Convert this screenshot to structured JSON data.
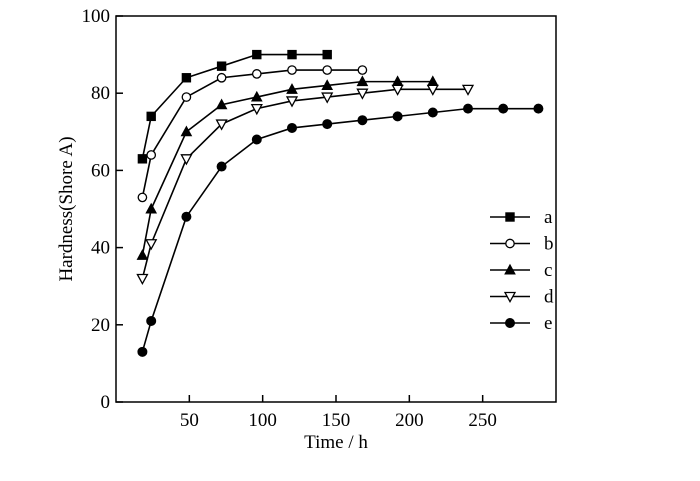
{
  "chart_data": {
    "type": "line",
    "xlabel": "Time / h",
    "ylabel": "Hardness(Shore A)",
    "xlim": [
      0,
      300
    ],
    "ylim": [
      0,
      100
    ],
    "x_ticks": [
      50,
      100,
      150,
      200,
      250
    ],
    "y_ticks": [
      0,
      20,
      40,
      60,
      80,
      100
    ],
    "grid": false,
    "legend_position": "right",
    "series": [
      {
        "name": "a",
        "marker": "filled-square",
        "x": [
          18,
          24,
          48,
          72,
          96,
          120,
          144
        ],
        "y": [
          63,
          74,
          84,
          87,
          90,
          90,
          90
        ]
      },
      {
        "name": "b",
        "marker": "open-circle",
        "x": [
          18,
          24,
          48,
          72,
          96,
          120,
          144,
          168
        ],
        "y": [
          53,
          64,
          79,
          84,
          85,
          86,
          86,
          86
        ]
      },
      {
        "name": "c",
        "marker": "filled-triangle-up",
        "x": [
          18,
          24,
          48,
          72,
          96,
          120,
          144,
          168,
          192,
          216
        ],
        "y": [
          38,
          50,
          70,
          77,
          79,
          81,
          82,
          83,
          83,
          83
        ]
      },
      {
        "name": "d",
        "marker": "open-triangle-down",
        "x": [
          18,
          24,
          48,
          72,
          96,
          120,
          144,
          168,
          192,
          216,
          240
        ],
        "y": [
          32,
          41,
          63,
          72,
          76,
          78,
          79,
          80,
          81,
          81,
          81
        ]
      },
      {
        "name": "e",
        "marker": "filled-circle",
        "x": [
          18,
          24,
          48,
          72,
          96,
          120,
          144,
          168,
          192,
          216,
          240,
          264,
          288
        ],
        "y": [
          13,
          21,
          48,
          61,
          68,
          71,
          72,
          73,
          74,
          75,
          76,
          76,
          76
        ]
      }
    ]
  }
}
